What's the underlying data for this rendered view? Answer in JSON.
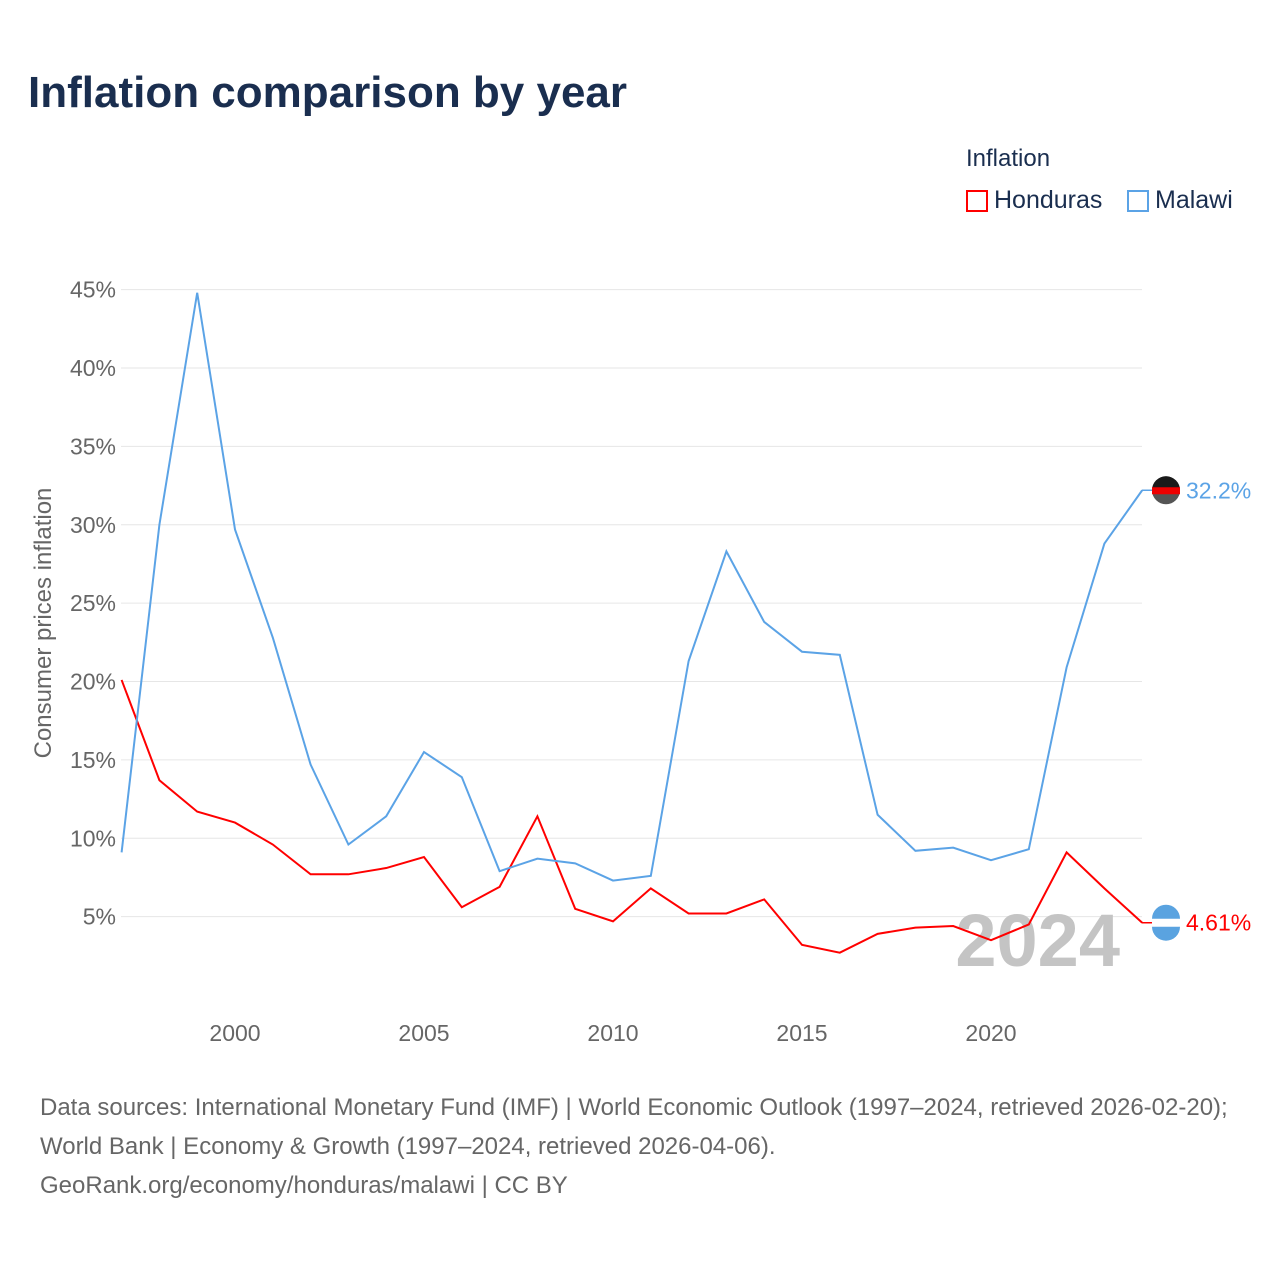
{
  "title": "Inflation comparison by year",
  "legend": {
    "title": "Inflation",
    "items": [
      {
        "name": "Honduras",
        "color": "#ff0000"
      },
      {
        "name": "Malawi",
        "color": "#5ba3e6"
      }
    ]
  },
  "chart_data": {
    "type": "line",
    "title": "Inflation comparison by year",
    "xlabel": "",
    "ylabel": "Consumer prices inflation",
    "x": [
      1997,
      1998,
      1999,
      2000,
      2001,
      2002,
      2003,
      2004,
      2005,
      2006,
      2007,
      2008,
      2009,
      2010,
      2011,
      2012,
      2013,
      2014,
      2015,
      2016,
      2017,
      2018,
      2019,
      2020,
      2021,
      2022,
      2023,
      2024
    ],
    "xticks": [
      "2000",
      "2005",
      "2010",
      "2015",
      "2020"
    ],
    "yticks": [
      "5%",
      "10%",
      "15%",
      "20%",
      "25%",
      "30%",
      "35%",
      "40%",
      "45%"
    ],
    "ylim": [
      0,
      45
    ],
    "grid": true,
    "legend_position": "top-right",
    "series": [
      {
        "name": "Honduras",
        "color": "#ff0000",
        "end_label": "4.61%",
        "values": [
          20.1,
          13.7,
          11.7,
          11.0,
          9.6,
          7.7,
          7.7,
          8.1,
          8.8,
          5.6,
          6.9,
          11.4,
          5.5,
          4.7,
          6.8,
          5.2,
          5.2,
          6.1,
          3.2,
          2.7,
          3.9,
          4.3,
          4.4,
          3.5,
          4.5,
          9.1,
          6.8,
          4.61
        ]
      },
      {
        "name": "Malawi",
        "color": "#5ba3e6",
        "end_label": "32.2%",
        "values": [
          9.1,
          30.0,
          44.8,
          29.7,
          22.8,
          14.7,
          9.6,
          11.4,
          15.5,
          13.9,
          7.9,
          8.7,
          8.4,
          7.3,
          7.6,
          21.3,
          28.3,
          23.8,
          21.9,
          21.7,
          11.5,
          9.2,
          9.4,
          8.6,
          9.3,
          20.9,
          28.8,
          32.2
        ]
      }
    ],
    "annotation": "2024"
  },
  "source": "Data sources: International Monetary Fund (IMF) | World Economic Outlook (1997–2024, retrieved 2026-02-20); World Bank | Economy & Growth (1997–2024, retrieved 2026-04-06).",
  "credit": "GeoRank.org/economy/honduras/malawi | CC BY"
}
